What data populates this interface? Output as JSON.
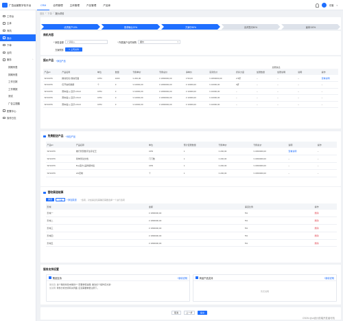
{
  "header": {
    "brand": "广告运营数字化平台",
    "nav": [
      "CRM",
      "合同管理",
      "主体管理",
      "产品管理",
      "产品库"
    ],
    "user": "访客"
  },
  "sidebar": {
    "items": [
      {
        "label": "工作台",
        "level": 0
      },
      {
        "label": "主体",
        "level": 0
      },
      {
        "label": "商机",
        "level": 0
      },
      {
        "label": "报价",
        "level": 0,
        "active": true
      },
      {
        "label": "下单",
        "level": 0
      },
      {
        "label": "合同",
        "level": 0
      },
      {
        "label": "服务",
        "level": 0,
        "arrow": "⌃"
      },
      {
        "label": "排期列表",
        "level": 1
      },
      {
        "label": "排期列表",
        "level": 1
      },
      {
        "label": "工作日报",
        "level": 1
      },
      {
        "label": "工作周报",
        "level": 1
      },
      {
        "label": "测试",
        "level": 1
      },
      {
        "label": "广告主提醒",
        "level": 1
      },
      {
        "label": "配置中心",
        "level": 0
      },
      {
        "label": "操作日志",
        "level": 0
      }
    ]
  },
  "breadcrumb": [
    "首页",
    "下单",
    "报价详情"
  ],
  "steps": [
    {
      "label": "优质客户10%",
      "done": true
    },
    {
      "label": "需求确认20%",
      "done": true
    },
    {
      "label": "方案中50%",
      "done": true
    },
    {
      "label": "谈判签约80%",
      "done": false
    },
    {
      "label": "赢单100%",
      "done": false
    }
  ],
  "deal": {
    "title": "商机内容",
    "fields": {
      "sales_label": "* 销售金额",
      "sales_placeholder": "¥ 请输入",
      "stage_label": "* 所属客户合同采购",
      "stage_value": "报价",
      "attach_label": "方案附件",
      "upload_label": "上传文件"
    }
  },
  "quote_products": {
    "title": "报价产品",
    "add": "+添加产品",
    "headers": [
      "产品ID",
      "产品名称",
      "单位",
      "数量",
      "刊例单价",
      "刊例总价",
      "净单价",
      "实际售价",
      "折扣力度",
      "加赠数量",
      "加赠说明",
      "说明",
      "操作"
    ],
    "group_header": "加赠信息",
    "rows": [
      [
        "SP10076",
        "推动优化-微信页面",
        "CPM",
        "1000",
        "¥ 200,00",
        "¥ 1800000,00",
        "¥ 50,00",
        "¥ 1800000,00",
        "2.5折",
        "–",
        "–",
        "–",
        "查看说明"
      ],
      [
        "SP10076",
        "仅开启机数据",
        "个",
        "3",
        "¥ 10000,00",
        "¥ 1800000,00",
        "¥ 10000,00",
        "¥ 10000,00",
        "0折",
        "–",
        "–",
        "–",
        "–"
      ],
      [
        "SP10076",
        "赛车插入-显示LOGO",
        "CPM",
        "3",
        "¥ 10000,00",
        "¥ 1800000,00",
        "¥ 10000,00",
        "¥ 10000,00",
        "–",
        "–",
        "–",
        "–",
        "–"
      ],
      [
        "SP10076",
        "赛车插入-显示LOGO",
        "CPM",
        "3",
        "¥ 10000,00",
        "¥ 1800000,00",
        "¥ 10000,00",
        "¥ 10000,00",
        "–",
        "–",
        "–",
        "–",
        "–"
      ],
      [
        "SP10076",
        "赛车插入-显示LOGO",
        "CPM",
        "3",
        "¥ 10000,00",
        "¥ 1800000,00",
        "¥ 10000,00",
        "¥ 10000,00",
        "–",
        "–",
        "–",
        "–",
        "–"
      ]
    ]
  },
  "gift_products": {
    "title": "免费配送产品",
    "add": "+添加产品",
    "headers": [
      "产品ID",
      "产品名称",
      "单位",
      "预计配赠数量",
      "刊例单价",
      "刊例总价",
      "说明",
      "操作"
    ],
    "rows": [
      [
        "SP10076",
        "推行智慧数字生存证王",
        "CPD",
        "1",
        "¥ 200,00",
        "¥ 1800000,00",
        "查看说明",
        "–"
      ],
      [
        "SP10076",
        "简单测试文档",
        "门门数",
        "1",
        "¥ 200,00",
        "¥ 1800000,00",
        "–",
        "–"
      ],
      [
        "SP10076",
        "Buy官方-品牌报时段",
        "CPD",
        "1",
        "¥ 200,00",
        "¥ 1800000,00",
        "–",
        "–"
      ],
      [
        "SP10076",
        "HS定制",
        "个",
        "1",
        "¥ 200,00",
        "¥ 1800000,00",
        "–",
        "–"
      ]
    ]
  },
  "channel": {
    "title": "营收渠道结算",
    "tabs": [
      "渠道",
      "个案"
    ],
    "add": "+添加渠道",
    "note": "*选项，对加渠道包需确定需要选择一个进行选项",
    "headers": [
      "影城",
      "金额",
      "渠道比例",
      "操作"
    ],
    "rows": [
      [
        "影城一",
        "¥ 1800000,00",
        "5%",
        "删除"
      ],
      [
        "影城二",
        "¥ 1800000,00",
        "5%",
        "删除"
      ],
      [
        "影城三",
        "¥ 1800000,00",
        "5%",
        "删除"
      ],
      [
        "影城四",
        "¥ 1800000,00",
        "5%",
        "删除"
      ],
      [
        "影城五",
        "¥ 1800000,00",
        "5%",
        "删除"
      ]
    ]
  },
  "support": {
    "title": "服务支持设置",
    "left": {
      "title": "策划支持",
      "add": "+新增说明",
      "lines": [
        {
          "k": "策划选:",
          "v": "这个策划将基本策划?一定要争取进展, 做法好个组作还文述!"
        },
        {
          "k": "加说明:",
          "v": "财务分析支持有关局面, 应该需要重量注意下。"
        }
      ]
    },
    "right": {
      "title": "商品产品支持",
      "add": "+新增说明",
      "empty": "暂无说明"
    }
  },
  "footer": {
    "cancel": "取消",
    "prev": "上一步",
    "submit": "提交"
  },
  "watermark": "CSDN @ui设计前端开发者可机"
}
